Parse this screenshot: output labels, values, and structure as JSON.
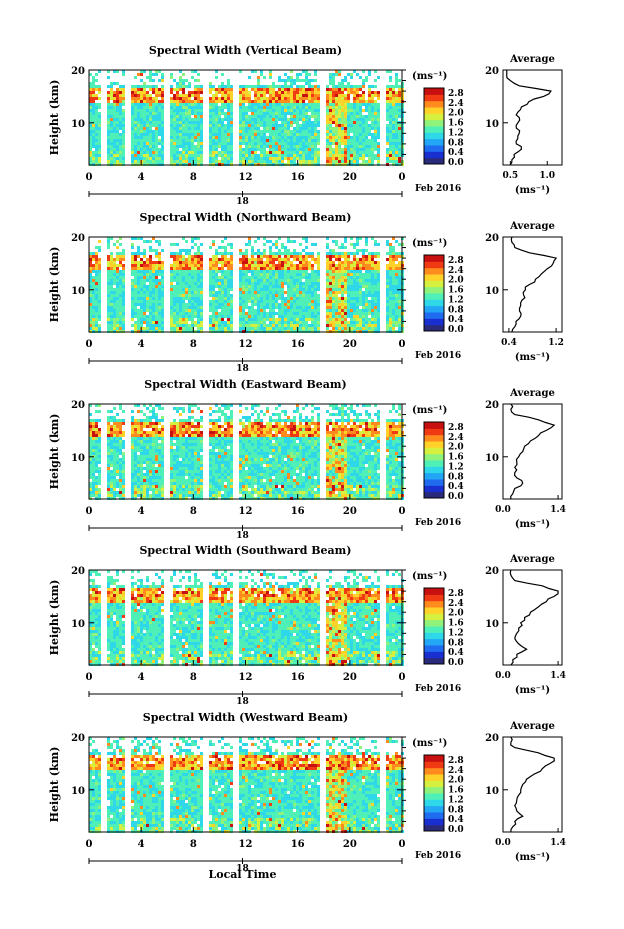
{
  "units_label": "(ms⁻¹)",
  "avg_title": "Average",
  "date_label": "Feb 2016",
  "day_label": "18",
  "xaxis_title": "Local Time",
  "y_axis_label": "Height (km)",
  "colorbar": {
    "ticks": [
      "2.8",
      "2.4",
      "2.0",
      "1.6",
      "1.2",
      "0.8",
      "0.4",
      "0.0"
    ],
    "colors": [
      "#2a2a7a",
      "#1a2fd0",
      "#1f6cf0",
      "#22a6f5",
      "#2ed8e8",
      "#4ef0b8",
      "#8ff27a",
      "#d6f040",
      "#ffd22a",
      "#ff8a1e",
      "#f03a14",
      "#c81010"
    ]
  },
  "chart_data": [
    {
      "type": "heatmap",
      "title": "Spectral Width (Vertical Beam)",
      "xlabel": "",
      "ylabel": "Height (km)",
      "x_ticks": [
        "0",
        "4",
        "8",
        "12",
        "16",
        "20",
        "0"
      ],
      "y_ticks": [
        "10",
        "20"
      ],
      "ylim": [
        2,
        20
      ],
      "avg_profile": {
        "xlabel": "(ms⁻¹)",
        "x_ticks": [
          "0.5",
          "1.0"
        ],
        "xlim": [
          0.4,
          1.2
        ],
        "height": [
          2,
          3,
          4,
          5,
          6,
          7,
          8,
          9,
          10,
          11,
          12,
          13,
          14,
          15,
          16,
          17,
          18,
          19,
          20
        ],
        "value": [
          0.5,
          0.52,
          0.55,
          0.65,
          0.58,
          0.6,
          0.62,
          0.58,
          0.6,
          0.62,
          0.6,
          0.65,
          0.75,
          0.95,
          1.05,
          0.62,
          0.5,
          0.45,
          0.45
        ]
      }
    },
    {
      "type": "heatmap",
      "title": "Spectral Width (Northward Beam)",
      "xlabel": "",
      "ylabel": "Height (km)",
      "x_ticks": [
        "0",
        "4",
        "8",
        "12",
        "16",
        "20",
        "0"
      ],
      "y_ticks": [
        "10",
        "20"
      ],
      "ylim": [
        2,
        20
      ],
      "avg_profile": {
        "xlabel": "(ms⁻¹)",
        "x_ticks": [
          "0.4",
          "1.2"
        ],
        "xlim": [
          0.3,
          1.3
        ],
        "height": [
          2,
          3,
          4,
          5,
          6,
          7,
          8,
          9,
          10,
          11,
          12,
          13,
          14,
          15,
          16,
          17,
          18,
          19,
          20
        ],
        "value": [
          0.45,
          0.5,
          0.52,
          0.6,
          0.58,
          0.6,
          0.62,
          0.65,
          0.68,
          0.75,
          0.85,
          0.95,
          1.05,
          1.15,
          1.2,
          0.75,
          0.5,
          0.45,
          0.45
        ]
      }
    },
    {
      "type": "heatmap",
      "title": "Spectral Width (Eastward Beam)",
      "xlabel": "",
      "ylabel": "Height (km)",
      "x_ticks": [
        "0",
        "4",
        "8",
        "12",
        "16",
        "20",
        "0"
      ],
      "y_ticks": [
        "10",
        "20"
      ],
      "ylim": [
        2,
        20
      ],
      "avg_profile": {
        "xlabel": "(ms⁻¹)",
        "x_ticks": [
          "0.0",
          "1.4"
        ],
        "xlim": [
          0,
          1.5
        ],
        "height": [
          2,
          3,
          4,
          5,
          6,
          7,
          8,
          9,
          10,
          11,
          12,
          13,
          14,
          15,
          16,
          17,
          18,
          19,
          20
        ],
        "value": [
          0.2,
          0.25,
          0.3,
          0.5,
          0.35,
          0.3,
          0.3,
          0.35,
          0.4,
          0.5,
          0.55,
          0.7,
          0.9,
          1.1,
          1.3,
          0.9,
          0.3,
          0.2,
          0.2
        ]
      }
    },
    {
      "type": "heatmap",
      "title": "Spectral Width (Southward Beam)",
      "xlabel": "",
      "ylabel": "Height (km)",
      "x_ticks": [
        "0",
        "4",
        "8",
        "12",
        "16",
        "20",
        "0"
      ],
      "y_ticks": [
        "10",
        "20"
      ],
      "ylim": [
        2,
        20
      ],
      "avg_profile": {
        "xlabel": "(ms⁻¹)",
        "x_ticks": [
          "0.0",
          "1.4"
        ],
        "xlim": [
          0,
          1.5
        ],
        "height": [
          2,
          3,
          4,
          5,
          6,
          7,
          8,
          9,
          10,
          11,
          12,
          13,
          14,
          15,
          16,
          17,
          18,
          19,
          20
        ],
        "value": [
          0.2,
          0.25,
          0.35,
          0.6,
          0.4,
          0.3,
          0.35,
          0.4,
          0.45,
          0.55,
          0.7,
          0.9,
          1.1,
          1.3,
          1.4,
          1.0,
          0.3,
          0.2,
          0.2
        ]
      }
    },
    {
      "type": "heatmap",
      "title": "Spectral Width (Westward Beam)",
      "xlabel": "Local Time",
      "ylabel": "Height (km)",
      "x_ticks": [
        "0",
        "4",
        "8",
        "12",
        "16",
        "20",
        "0"
      ],
      "y_ticks": [
        "10",
        "20"
      ],
      "ylim": [
        2,
        20
      ],
      "avg_profile": {
        "xlabel": "(ms⁻¹)",
        "x_ticks": [
          "0.0",
          "1.4"
        ],
        "xlim": [
          0,
          1.5
        ],
        "height": [
          2,
          3,
          4,
          5,
          6,
          7,
          8,
          9,
          10,
          11,
          12,
          13,
          14,
          15,
          16,
          17,
          18,
          19,
          20
        ],
        "value": [
          0.2,
          0.25,
          0.3,
          0.5,
          0.35,
          0.3,
          0.35,
          0.4,
          0.45,
          0.5,
          0.6,
          0.8,
          1.0,
          1.2,
          1.3,
          0.9,
          0.3,
          0.2,
          0.2
        ]
      }
    }
  ]
}
